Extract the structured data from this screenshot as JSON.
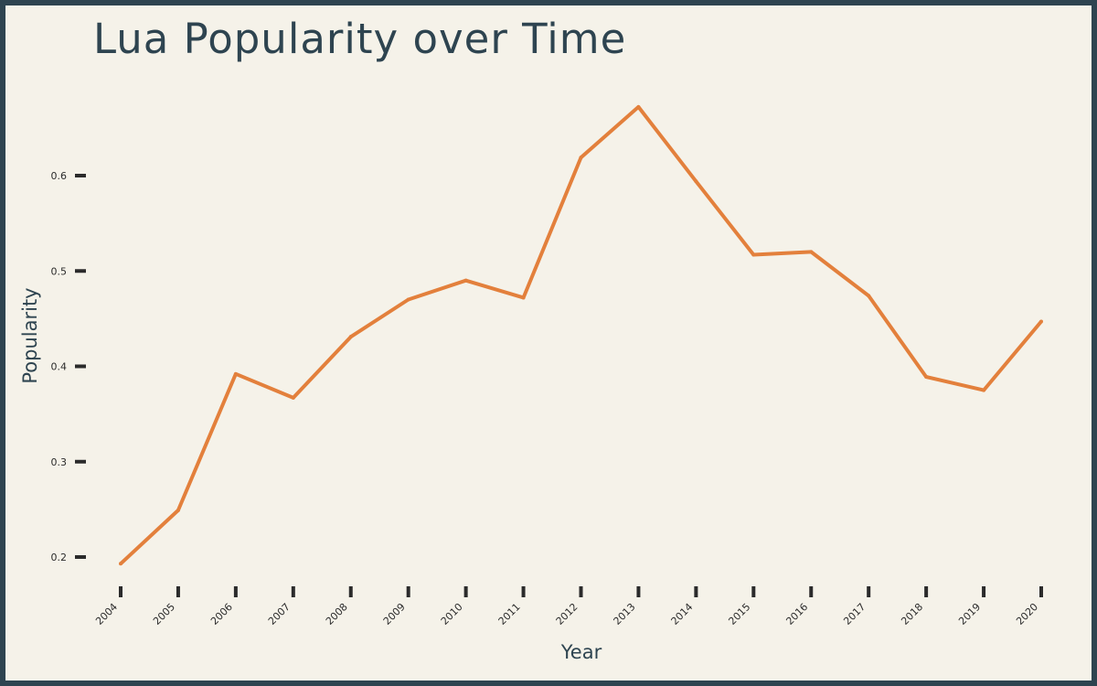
{
  "chart_data": {
    "type": "line",
    "title": "Lua Popularity over Time",
    "xlabel": "Year",
    "ylabel": "Popularity",
    "x": [
      "2004",
      "2005",
      "2006",
      "2007",
      "2008",
      "2009",
      "2010",
      "2011",
      "2012",
      "2013",
      "2014",
      "2015",
      "2016",
      "2017",
      "2018",
      "2019",
      "2020"
    ],
    "series": [
      {
        "values": [
          0.193,
          0.249,
          0.392,
          0.367,
          0.431,
          0.47,
          0.49,
          0.472,
          0.619,
          0.672,
          0.594,
          0.517,
          0.52,
          0.474,
          0.389,
          0.375,
          0.447
        ]
      }
    ],
    "yticks": [
      "0.2",
      "0.3",
      "0.4",
      "0.5",
      "0.6"
    ],
    "ylim": [
      0.2,
      0.6
    ],
    "grid": false,
    "legend": "none",
    "colors": {
      "line": "#e3803c",
      "ticks": "#2b2b2b",
      "title": "#2e4450",
      "background": "#f5f2e9",
      "border": "#2e4450"
    }
  }
}
